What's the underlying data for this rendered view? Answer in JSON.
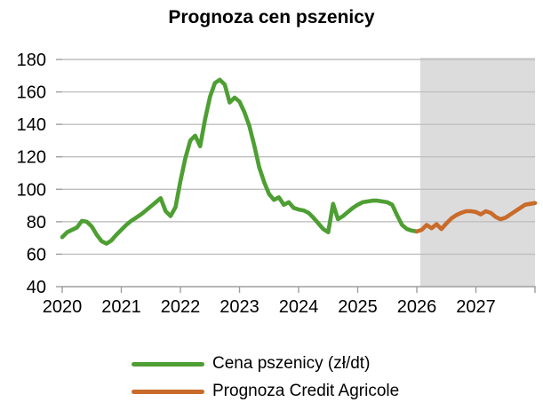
{
  "title": "Prognoza cen pszenicy",
  "chart_data": {
    "type": "line",
    "title": "Prognoza cen pszenicy",
    "xlabel": "",
    "ylabel": "",
    "ylim": [
      40,
      180
    ],
    "y_ticks": [
      40,
      60,
      80,
      100,
      120,
      140,
      160,
      180
    ],
    "x_tick_labels": [
      "2020",
      "2021",
      "2022",
      "2023",
      "2024",
      "2025",
      "2026",
      "2027"
    ],
    "x_unit": "months since Jan 2020",
    "x_range_months": [
      0,
      96
    ],
    "grid": true,
    "legend_position": "bottom",
    "forecast_region": {
      "start_month": 72.7,
      "end_month": 96,
      "fill": "#dcdcdc"
    },
    "series": [
      {
        "name": "Cena pszenicy (zł/dt)",
        "color": "#4e9f33",
        "start_month": 0,
        "monthly_values": [
          70.5,
          73.5,
          75,
          76.5,
          80.5,
          80,
          77,
          72,
          68,
          66.5,
          68.5,
          72,
          75,
          78,
          80.5,
          82.5,
          84.5,
          87,
          89.5,
          92,
          94.5,
          86.5,
          83.5,
          89,
          105,
          119,
          130,
          133,
          126.5,
          143,
          157,
          165.5,
          167.5,
          164.5,
          153.5,
          156.5,
          154,
          147.5,
          139,
          127,
          113.5,
          104.5,
          97,
          93.5,
          95,
          90.5,
          92,
          88.5,
          87.5,
          87,
          85.5,
          82.5,
          79,
          75.5,
          73.5,
          91,
          81.5,
          83.5,
          86,
          88.5,
          90.5,
          92,
          92.5,
          93,
          93,
          92.5,
          92,
          90.5,
          84,
          78,
          75.5,
          74.5,
          74
        ]
      },
      {
        "name": "Prognoza Credit Agricole",
        "color": "#c96b2b",
        "start_month": 72,
        "monthly_values": [
          74,
          75,
          78,
          76,
          78.5,
          75.5,
          79,
          82,
          84,
          85.5,
          86.5,
          86.5,
          86,
          84.5,
          86.5,
          85.5,
          83,
          81.5,
          82.5,
          84.5,
          86.5,
          88.5,
          90.5,
          91,
          91.5
        ]
      }
    ]
  },
  "colors": {
    "grid": "#bfbfbf",
    "axis": "#9e9e9e",
    "tick": "#9e9e9e",
    "text": "#000000",
    "background": "#ffffff",
    "forecast_band": "#dcdcdc"
  }
}
